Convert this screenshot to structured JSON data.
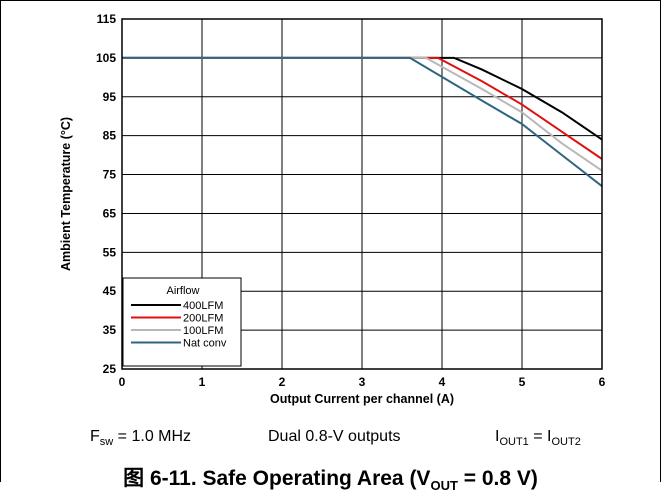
{
  "chart_data": {
    "type": "line",
    "xlabel": "Output Current per channel (A)",
    "ylabel": "Ambient Temperature (°C)",
    "xlim": [
      0,
      6
    ],
    "ylim": [
      25,
      115
    ],
    "x_ticks": [
      "0",
      "1",
      "2",
      "3",
      "4",
      "5",
      "6"
    ],
    "y_ticks": [
      "25",
      "35",
      "45",
      "55",
      "65",
      "75",
      "85",
      "95",
      "105",
      "115"
    ],
    "grid": true,
    "legend": {
      "title": "Airflow",
      "placement": "bottom-left"
    },
    "series": [
      {
        "name": "400LFM",
        "color": "#000000",
        "x": [
          0,
          4.15,
          4.5,
          5.0,
          5.5,
          6.0
        ],
        "y": [
          105,
          105,
          102,
          97,
          91,
          84
        ]
      },
      {
        "name": "200LFM",
        "color": "#e01010",
        "x": [
          0,
          3.95,
          4.5,
          5.0,
          5.5,
          6.0
        ],
        "y": [
          105,
          105,
          99,
          93,
          86,
          79
        ]
      },
      {
        "name": "100LFM",
        "color": "#b8b8b8",
        "x": [
          0,
          3.8,
          4.5,
          5.0,
          5.5,
          6.0
        ],
        "y": [
          105,
          105,
          97,
          91,
          83,
          76
        ]
      },
      {
        "name": "Nat conv",
        "color": "#2e6680",
        "x": [
          0,
          3.6,
          4.5,
          5.0,
          5.5,
          6.0
        ],
        "y": [
          105,
          105,
          94,
          88,
          80,
          72
        ]
      }
    ]
  },
  "footer": {
    "fsw": "F",
    "fsw_sub": "sw",
    "fsw_value": " = 1.0 MHz",
    "outputs": "Dual 0.8-V outputs",
    "iout": "I",
    "iout1_sub": "OUT1",
    "eq": " = I",
    "iout2_sub": "OUT2"
  },
  "caption": "图 6-11. Safe Operating Area (V",
  "caption_sub": "OUT",
  "caption_end": " = 0.8 V)"
}
